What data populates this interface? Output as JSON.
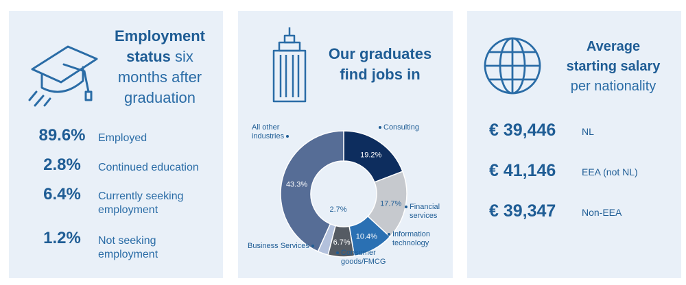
{
  "employment": {
    "title_bold": "Employment",
    "title_rest_1": "status six",
    "title_rest_2": "months after",
    "title_rest_3": "graduation",
    "icon": "graduation-cap-icon",
    "stats": [
      {
        "percent": "89.6%",
        "label_1": "Employed",
        "label_2": ""
      },
      {
        "percent": "2.8%",
        "label_1": "Continued education",
        "label_2": ""
      },
      {
        "percent": "6.4%",
        "label_1": "Currently seeking",
        "label_2": "employment"
      },
      {
        "percent": "1.2%",
        "label_1": "Not seeking",
        "label_2": "employment"
      }
    ]
  },
  "jobs": {
    "title_1": "Our graduates",
    "title_2": "find jobs in",
    "icon": "building-icon"
  },
  "salary": {
    "title_1": "Average",
    "title_2": "starting salary",
    "title_3": "per nationality",
    "icon": "globe-icon",
    "rows": [
      {
        "amount": "€ 39,446",
        "nationality": "NL"
      },
      {
        "amount": "€ 41,146",
        "nationality": "EEA (not NL)"
      },
      {
        "amount": "€ 39,347",
        "nationality": "Non-EEA"
      }
    ]
  },
  "colors": {
    "panel_bg": "#e9f0f8",
    "primary_text": "#1f5d95"
  },
  "chart_data": {
    "type": "pie",
    "variant": "donut",
    "title": "",
    "slices": [
      {
        "name": "Consulting",
        "value": 19.2,
        "label": "19.2%",
        "color": "#0d2d5e",
        "text_color": "#ffffff"
      },
      {
        "name": "Financial services",
        "value": 17.7,
        "label": "17.7%",
        "color": "#c6c9ce",
        "text_color": "#1f5d95"
      },
      {
        "name": "Information technology",
        "value": 10.4,
        "label": "10.4%",
        "color": "#2a70b3",
        "text_color": "#ffffff"
      },
      {
        "name": "Consumer goods/FMCG",
        "value": 6.7,
        "label": "6.7%",
        "color": "#555b63",
        "text_color": "#ffffff"
      },
      {
        "name": "Business Services",
        "value": 2.7,
        "label": "2.7%",
        "color": "#b3c1dc",
        "text_color": "#1f5d95"
      },
      {
        "name": "All other industries",
        "value": 43.3,
        "label": "43.3%",
        "color": "#566d96",
        "text_color": "#ffffff"
      }
    ],
    "category_labels": {
      "consulting": "Consulting",
      "financial_1": "Financial",
      "financial_2": "services",
      "it_1": "Information",
      "it_2": "technology",
      "consumer_1": "Consumer",
      "consumer_2": "goods/FMCG",
      "business": "Business Services",
      "other_1": "All other",
      "other_2": "industries"
    }
  }
}
